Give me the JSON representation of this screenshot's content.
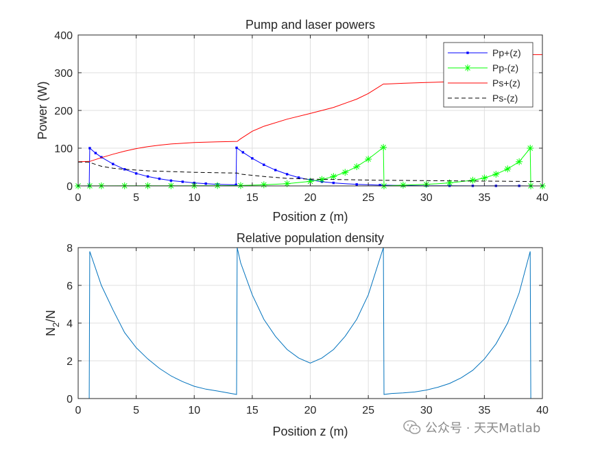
{
  "watermark": {
    "text": "公众号 · 天天Matlab"
  },
  "chart_data": [
    {
      "type": "line",
      "title": "Pump and laser powers",
      "xlabel": "Position z (m)",
      "ylabel": "Power (W)",
      "xlim": [
        0,
        40
      ],
      "ylim": [
        0,
        400
      ],
      "xticks": [
        0,
        5,
        10,
        15,
        20,
        25,
        30,
        35,
        40
      ],
      "yticks": [
        0,
        100,
        200,
        300,
        400
      ],
      "grid": true,
      "legend_position": "top-right",
      "series": [
        {
          "name": "Pp+(z)",
          "color": "#0000ff",
          "style": "solid",
          "marker": "dot",
          "x": [
            0,
            0.95,
            1.0,
            1.5,
            2,
            3,
            4,
            5,
            6,
            7,
            8,
            9,
            10,
            11,
            12,
            13.6,
            13.65,
            14.2,
            15,
            16,
            17,
            18,
            19,
            20,
            21,
            22,
            24,
            26,
            28,
            30,
            32,
            34,
            36,
            38,
            39,
            40
          ],
          "y": [
            0,
            0,
            100,
            87,
            76,
            58,
            44,
            33,
            25,
            19,
            14,
            11,
            8,
            6,
            4,
            3,
            101,
            89,
            73,
            56,
            42,
            31,
            22,
            16,
            11,
            8,
            4,
            2,
            1,
            0.5,
            0.3,
            0.2,
            0.1,
            0.1,
            0,
            0
          ]
        },
        {
          "name": "Pp-(z)",
          "color": "#00ff00",
          "style": "solid",
          "marker": "asterisk",
          "x": [
            0,
            1,
            2,
            4,
            6,
            8,
            10,
            12,
            14,
            16,
            18,
            20,
            21,
            22,
            23,
            24,
            25,
            26.3,
            26.35,
            28,
            30,
            32,
            34,
            35,
            36,
            37,
            38,
            38.95,
            39.0,
            40
          ],
          "y": [
            0,
            0.1,
            0.2,
            0.3,
            0.4,
            0.5,
            0.6,
            0.8,
            1,
            3,
            6,
            12,
            17,
            25,
            36,
            51,
            71,
            102,
            0,
            2,
            4,
            8,
            15,
            21,
            31,
            45,
            64,
            100,
            0,
            0
          ]
        },
        {
          "name": "Ps+(z)",
          "color": "#ff0000",
          "style": "solid",
          "marker": "none",
          "x": [
            0,
            1,
            2,
            3,
            4,
            5,
            6,
            7,
            8,
            10,
            12,
            13.7,
            14,
            15,
            16,
            18,
            20,
            22,
            24,
            25,
            26.3,
            26.5,
            28,
            30,
            32,
            34,
            36,
            38,
            39.0,
            39.05,
            40
          ],
          "y": [
            64,
            65,
            75,
            84,
            92,
            99,
            104,
            108,
            111,
            115,
            117,
            118,
            125,
            145,
            158,
            177,
            192,
            208,
            230,
            245,
            270,
            270,
            272,
            274,
            276,
            277,
            278,
            279,
            279,
            348,
            348
          ]
        },
        {
          "name": "Ps-(z)",
          "color": "#000000",
          "style": "dashed",
          "marker": "none",
          "x": [
            0,
            0.9,
            1.0,
            2,
            3,
            4,
            5,
            6,
            7,
            8,
            10,
            12,
            13.7,
            14,
            16,
            18,
            20,
            22,
            24,
            26,
            28,
            30,
            32,
            34,
            36,
            38,
            40
          ],
          "y": [
            63,
            63,
            62,
            52,
            47,
            44,
            42,
            40,
            39,
            38,
            36,
            35,
            34,
            31,
            25,
            20,
            18,
            17,
            16,
            15,
            14.5,
            14,
            13.5,
            13,
            12.5,
            12,
            11.5
          ]
        }
      ]
    },
    {
      "type": "line",
      "title": "Relative population density",
      "xlabel": "Position z (m)",
      "ylabel": "N2/N",
      "ylabel_main": "N",
      "ylabel_sub": "2",
      "ylabel_tail": "/N",
      "xlim": [
        0,
        40
      ],
      "ylim": [
        0,
        8
      ],
      "xticks": [
        0,
        5,
        10,
        15,
        20,
        25,
        30,
        35,
        40
      ],
      "yticks": [
        0,
        2,
        4,
        6,
        8
      ],
      "grid": true,
      "series": [
        {
          "name": "N2/N",
          "color": "#0072bd",
          "style": "solid",
          "marker": "none",
          "x": [
            0,
            0.95,
            1.0,
            1.5,
            2,
            3,
            4,
            5,
            6,
            7,
            8,
            9,
            10,
            11,
            12,
            13.65,
            13.7,
            14,
            15,
            16,
            17,
            18,
            19,
            20,
            21,
            22,
            23,
            24,
            25,
            26.3,
            26.35,
            27,
            28,
            29,
            30,
            31,
            32,
            33,
            34,
            35,
            36,
            37,
            38,
            38.95,
            39.0,
            40
          ],
          "y": [
            0,
            0,
            7.8,
            6.9,
            6.0,
            4.7,
            3.5,
            2.7,
            2.1,
            1.6,
            1.2,
            0.9,
            0.65,
            0.5,
            0.4,
            0.22,
            8.0,
            7.2,
            5.5,
            4.2,
            3.3,
            2.6,
            2.15,
            1.88,
            2.15,
            2.6,
            3.3,
            4.2,
            5.5,
            8.0,
            0.22,
            0.27,
            0.3,
            0.35,
            0.45,
            0.6,
            0.8,
            1.1,
            1.5,
            2.1,
            2.9,
            4.0,
            5.6,
            7.8,
            0,
            0
          ]
        }
      ]
    }
  ]
}
